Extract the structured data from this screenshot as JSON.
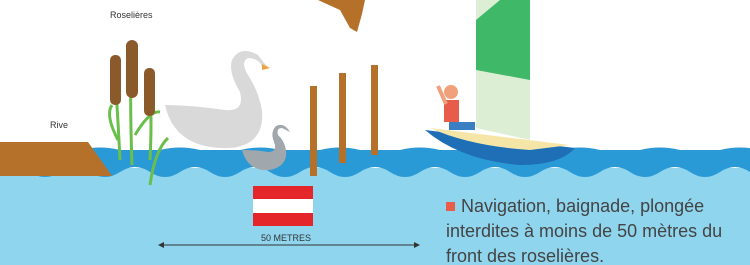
{
  "labels": {
    "reeds": "Roselières",
    "bank": "Rive",
    "distance": "50 METRES"
  },
  "notice": {
    "lines": [
      "Navigation, baignade, plongée",
      "interdites à moins de 50 mètres du",
      "front des roselières."
    ]
  }
}
